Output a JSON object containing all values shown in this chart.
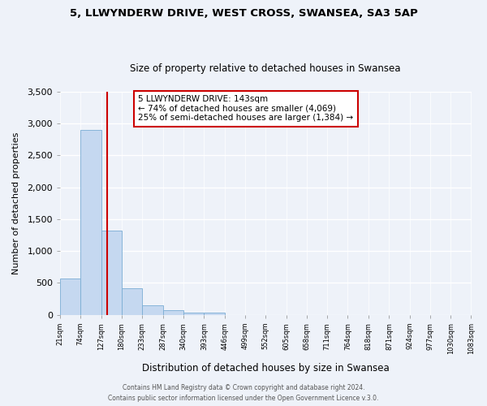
{
  "title": "5, LLWYNDERW DRIVE, WEST CROSS, SWANSEA, SA3 5AP",
  "subtitle": "Size of property relative to detached houses in Swansea",
  "xlabel": "Distribution of detached houses by size in Swansea",
  "ylabel": "Number of detached properties",
  "bar_values": [
    575,
    2900,
    1320,
    415,
    155,
    75,
    35,
    30,
    0,
    0,
    0,
    0,
    0,
    0,
    0,
    0,
    0,
    0,
    0,
    0
  ],
  "bin_edges": [
    21,
    74,
    127,
    180,
    233,
    287,
    340,
    393,
    446,
    499,
    552,
    605,
    658,
    711,
    764,
    818,
    871,
    924,
    977,
    1030,
    1083
  ],
  "tick_labels": [
    "21sqm",
    "74sqm",
    "127sqm",
    "180sqm",
    "233sqm",
    "287sqm",
    "340sqm",
    "393sqm",
    "446sqm",
    "499sqm",
    "552sqm",
    "605sqm",
    "658sqm",
    "711sqm",
    "764sqm",
    "818sqm",
    "871sqm",
    "924sqm",
    "977sqm",
    "1030sqm",
    "1083sqm"
  ],
  "bar_color": "#c5d8f0",
  "bar_edge_color": "#7aadd4",
  "vline_x": 143,
  "vline_color": "#cc0000",
  "annotation_text": "5 LLWYNDERW DRIVE: 143sqm\n← 74% of detached houses are smaller (4,069)\n25% of semi-detached houses are larger (1,384) →",
  "annotation_box_color": "white",
  "annotation_box_edge": "#cc0000",
  "ylim": [
    0,
    3500
  ],
  "yticks": [
    0,
    500,
    1000,
    1500,
    2000,
    2500,
    3000,
    3500
  ],
  "footer1": "Contains HM Land Registry data © Crown copyright and database right 2024.",
  "footer2": "Contains public sector information licensed under the Open Government Licence v.3.0.",
  "bg_color": "#eef2f9",
  "grid_color": "white",
  "title_fontsize": 9.5,
  "subtitle_fontsize": 8.5,
  "xlabel_fontsize": 8.5,
  "ylabel_fontsize": 8,
  "tick_fontsize": 6,
  "annotation_fontsize": 7.5,
  "footer_fontsize": 5.5,
  "footer_color": "#555555"
}
